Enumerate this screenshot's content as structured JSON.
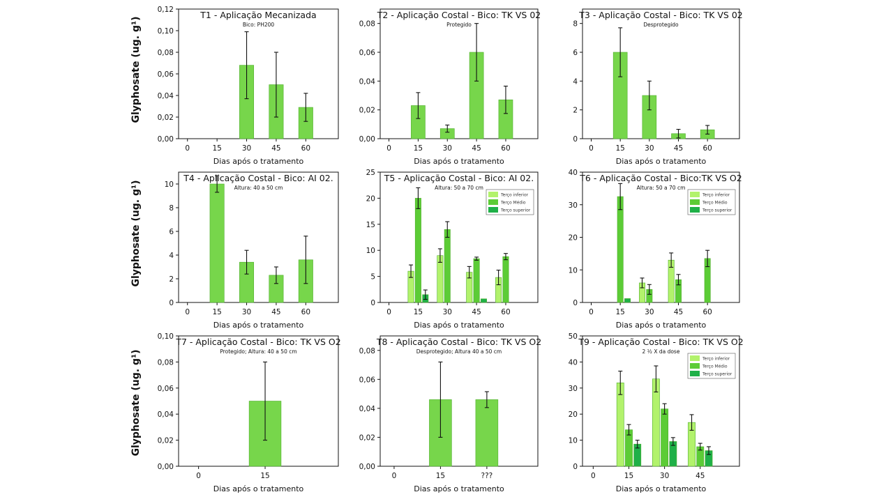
{
  "figure": {
    "row_ylabels": [
      "Glyphosate (ug. g¹)",
      "Glyphosate (ug. g¹)",
      "Glyphosate (ug. g¹)"
    ]
  },
  "colors": {
    "bar_single": "#77d64b",
    "bar_border": "#4fae2c",
    "series": [
      "#b2f26c",
      "#5ccc36",
      "#1fb048"
    ],
    "axis": "#111111"
  },
  "chart_data": [
    {
      "type": "bar",
      "title": "T1 - Aplicação Mecanizada",
      "subtitle": "Bico: PH200",
      "xlabel": "Dias após o tratamento",
      "ylim": [
        0,
        0.12
      ],
      "yticks": [
        "0,00",
        "0,02",
        "0,04",
        "0,06",
        "0,08",
        "0,10",
        "0,12"
      ],
      "xticks": [
        "0",
        "15",
        "30",
        "45",
        "60"
      ],
      "categories": [
        "0",
        "15",
        "30",
        "45",
        "60"
      ],
      "series": [
        {
          "values": [
            null,
            null,
            0.068,
            0.05,
            0.029
          ],
          "errors": [
            null,
            null,
            0.031,
            0.03,
            0.013
          ]
        }
      ]
    },
    {
      "type": "bar",
      "title": "T2 - Aplicação Costal - Bico: TK VS 02",
      "subtitle": "Protegido",
      "xlabel": "Dias após o tratamento",
      "ylim": [
        0,
        0.09
      ],
      "yticks": [
        "0,00",
        "0,02",
        "0,04",
        "0,06",
        "0,08"
      ],
      "xticks": [
        "0",
        "15",
        "30",
        "45",
        "60"
      ],
      "categories": [
        "0",
        "15",
        "30",
        "45",
        "60"
      ],
      "series": [
        {
          "values": [
            null,
            0.023,
            0.007,
            0.06,
            0.027
          ],
          "errors": [
            null,
            0.009,
            0.0025,
            0.02,
            0.0095
          ]
        }
      ]
    },
    {
      "type": "bar",
      "title": "T3 - Aplicação Costal - Bico: TK VS 02",
      "subtitle": "Desprotegido",
      "xlabel": "Dias após o tratamento",
      "ylim": [
        0,
        9
      ],
      "yticks": [
        "0",
        "2",
        "4",
        "6",
        "8"
      ],
      "xticks": [
        "0",
        "15",
        "30",
        "45",
        "60"
      ],
      "categories": [
        "0",
        "15",
        "30",
        "45",
        "60"
      ],
      "series": [
        {
          "values": [
            null,
            6.0,
            3.0,
            0.35,
            0.62
          ],
          "errors": [
            null,
            1.7,
            1.0,
            0.3,
            0.3
          ]
        }
      ]
    },
    {
      "type": "bar",
      "title": "T4 - Aplicação Costal - Bico: AI 02.",
      "subtitle": "Altura: 40 a 50 cm",
      "xlabel": "Dias após o tratamento",
      "ylim": [
        0,
        11
      ],
      "yticks": [
        "0",
        "2",
        "4",
        "6",
        "8",
        "10"
      ],
      "xticks": [
        "0",
        "15",
        "30",
        "45",
        "60"
      ],
      "categories": [
        "0",
        "15",
        "30",
        "45",
        "60"
      ],
      "series": [
        {
          "values": [
            null,
            10.0,
            3.4,
            2.3,
            3.6
          ],
          "errors": [
            null,
            0.7,
            1.0,
            0.7,
            2.0
          ]
        }
      ]
    },
    {
      "type": "bar",
      "title": "T5 - Aplicação Costal - Bico: AI 02.",
      "subtitle": "Altura: 50 a 70 cm",
      "xlabel": "Dias após o tratamento",
      "ylim": [
        0,
        25
      ],
      "yticks": [
        "0",
        "5",
        "10",
        "15",
        "20",
        "25"
      ],
      "xticks": [
        "0",
        "15",
        "30",
        "45",
        "60"
      ],
      "categories": [
        "0",
        "15",
        "30",
        "45",
        "60"
      ],
      "legend": {
        "position": "top-right"
      },
      "series": [
        {
          "name": "Terço inferior",
          "values": [
            null,
            6.0,
            9.0,
            5.8,
            4.8
          ],
          "errors": [
            null,
            1.2,
            1.3,
            1.1,
            1.4
          ]
        },
        {
          "name": "Terço Médio",
          "values": [
            null,
            20.0,
            14.0,
            8.4,
            8.8
          ],
          "errors": [
            null,
            2.0,
            1.5,
            0.3,
            0.6
          ]
        },
        {
          "name": "Terço superior",
          "values": [
            null,
            1.5,
            null,
            0.7,
            null
          ],
          "errors": [
            null,
            0.9,
            null,
            null,
            null
          ]
        }
      ]
    },
    {
      "type": "bar",
      "title": "T6 - Aplicação Costal - Bico:TK VS O2",
      "subtitle": "Altura: 50 a 70 cm",
      "xlabel": "Dias após o tratamento",
      "ylim": [
        0,
        40
      ],
      "yticks": [
        "0",
        "10",
        "20",
        "30",
        "40"
      ],
      "xticks": [
        "0",
        "15",
        "30",
        "45",
        "60"
      ],
      "categories": [
        "0",
        "15",
        "30",
        "45",
        "60"
      ],
      "legend": {
        "position": "top-right"
      },
      "series": [
        {
          "name": "Terço inferior",
          "values": [
            null,
            null,
            6.0,
            13.0,
            null
          ],
          "errors": [
            null,
            null,
            1.5,
            2.2,
            null
          ]
        },
        {
          "name": "Terço Médio",
          "values": [
            null,
            32.5,
            4.0,
            7.0,
            13.5
          ],
          "errors": [
            null,
            4.0,
            1.5,
            1.6,
            2.5
          ]
        },
        {
          "name": "Terço superior",
          "values": [
            null,
            1.2,
            null,
            null,
            null
          ],
          "errors": [
            null,
            null,
            null,
            null,
            null
          ]
        }
      ]
    },
    {
      "type": "bar",
      "title": "T7 - Aplicação Costal - Bico: TK VS O2",
      "subtitle": "Protegido; Altura: 40 a 50 cm",
      "xlabel": "Dias após o tratamento",
      "ylim": [
        0,
        0.1
      ],
      "yticks": [
        "0,00",
        "0,02",
        "0,04",
        "0,06",
        "0,08",
        "0,10"
      ],
      "xticks": [
        "0",
        "15"
      ],
      "categories": [
        "0",
        "15"
      ],
      "series": [
        {
          "values": [
            null,
            0.05
          ],
          "errors": [
            null,
            0.03
          ]
        }
      ]
    },
    {
      "type": "bar",
      "title": "T8 - Aplicação Costal - Bico: TK VS O2",
      "subtitle": "Desprotegido; Altura 40 a 50 cm",
      "xlabel": "Dias após o tratamento",
      "ylim": [
        0,
        0.09
      ],
      "yticks": [
        "0,00",
        "0,02",
        "0,04",
        "0,06",
        "0,08"
      ],
      "xticks": [
        "0",
        "15",
        "???"
      ],
      "categories": [
        "0",
        "15",
        "???"
      ],
      "series": [
        {
          "values": [
            null,
            0.046,
            0.046
          ],
          "errors": [
            null,
            0.026,
            0.0055
          ]
        }
      ]
    },
    {
      "type": "bar",
      "title": "T9 - Aplicação Costal - Bico: TK VS O2",
      "subtitle": "2 ½ X da dose",
      "xlabel": "Dias após o tratamento",
      "ylim": [
        0,
        50
      ],
      "yticks": [
        "0",
        "10",
        "20",
        "30",
        "40",
        "50"
      ],
      "xticks": [
        "0",
        "15",
        "30",
        "45"
      ],
      "categories": [
        "0",
        "15",
        "30",
        "45"
      ],
      "legend": {
        "position": "top-right"
      },
      "series": [
        {
          "name": "Terço inferior",
          "values": [
            null,
            32.0,
            33.5,
            16.8
          ],
          "errors": [
            null,
            4.5,
            5.0,
            3.0
          ]
        },
        {
          "name": "Terço Médio",
          "values": [
            null,
            14.0,
            22.0,
            7.5
          ],
          "errors": [
            null,
            2.0,
            2.0,
            1.3
          ]
        },
        {
          "name": "Terço superior",
          "values": [
            null,
            8.5,
            9.5,
            6.0
          ],
          "errors": [
            null,
            1.5,
            1.5,
            1.5
          ]
        }
      ]
    }
  ]
}
